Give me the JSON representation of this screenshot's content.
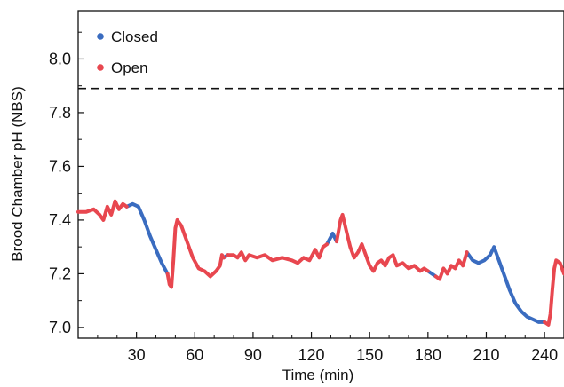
{
  "chart_data": {
    "type": "scatter",
    "title": "",
    "xlabel": "Time (min)",
    "ylabel": "Brood Chamber pH (NBS)",
    "xlim": [
      0,
      250
    ],
    "ylim": [
      6.96,
      8.18
    ],
    "x_ticks": [
      30,
      60,
      90,
      120,
      150,
      180,
      210,
      240
    ],
    "x_tick_labels": [
      "30",
      "60",
      "90",
      "120",
      "150",
      "180",
      "210",
      "240"
    ],
    "y_ticks": [
      7.0,
      7.2,
      7.4,
      7.6,
      7.8,
      8.0
    ],
    "y_tick_labels": [
      "7.0",
      "7.2",
      "7.4",
      "7.6",
      "7.8",
      "8.0"
    ],
    "reference_line": {
      "y": 7.89,
      "style": "dashed"
    },
    "legend_position": "top-left",
    "series": [
      {
        "name": "Closed",
        "color": "#3a6cc0",
        "segments": [
          [
            [
              25,
              7.45
            ],
            [
              28,
              7.46
            ],
            [
              31,
              7.45
            ],
            [
              34,
              7.4
            ],
            [
              37,
              7.34
            ],
            [
              40,
              7.29
            ],
            [
              43,
              7.24
            ],
            [
              46,
              7.2
            ]
          ],
          [
            [
              75,
              7.26
            ],
            [
              77,
              7.27
            ]
          ],
          [
            [
              128,
              7.31
            ],
            [
              131,
              7.35
            ],
            [
              133,
              7.32
            ]
          ],
          [
            [
              180,
              7.21
            ],
            [
              182,
              7.2
            ],
            [
              184,
              7.19
            ]
          ],
          [
            [
              200,
              7.28
            ],
            [
              203,
              7.25
            ],
            [
              206,
              7.24
            ],
            [
              209,
              7.25
            ],
            [
              212,
              7.27
            ],
            [
              214,
              7.3
            ],
            [
              216,
              7.26
            ],
            [
              219,
              7.2
            ],
            [
              222,
              7.14
            ],
            [
              225,
              7.09
            ],
            [
              228,
              7.06
            ],
            [
              231,
              7.04
            ],
            [
              234,
              7.03
            ],
            [
              237,
              7.02
            ],
            [
              240,
              7.02
            ]
          ]
        ]
      },
      {
        "name": "Open",
        "color": "#e8474f",
        "segments": [
          [
            [
              0,
              7.43
            ],
            [
              4,
              7.43
            ],
            [
              8,
              7.44
            ],
            [
              11,
              7.42
            ],
            [
              13,
              7.4
            ],
            [
              15,
              7.45
            ],
            [
              17,
              7.42
            ],
            [
              19,
              7.47
            ],
            [
              21,
              7.44
            ],
            [
              23,
              7.46
            ],
            [
              25,
              7.45
            ]
          ],
          [
            [
              46,
              7.2
            ],
            [
              47,
              7.16
            ],
            [
              48,
              7.15
            ],
            [
              49,
              7.25
            ],
            [
              50,
              7.37
            ],
            [
              51,
              7.4
            ],
            [
              53,
              7.38
            ],
            [
              56,
              7.32
            ],
            [
              59,
              7.26
            ],
            [
              62,
              7.22
            ],
            [
              65,
              7.21
            ],
            [
              68,
              7.19
            ],
            [
              71,
              7.21
            ],
            [
              73,
              7.23
            ],
            [
              74,
              7.27
            ],
            [
              75,
              7.26
            ]
          ],
          [
            [
              77,
              7.27
            ],
            [
              80,
              7.27
            ],
            [
              82,
              7.26
            ],
            [
              84,
              7.28
            ],
            [
              86,
              7.25
            ],
            [
              88,
              7.27
            ],
            [
              92,
              7.26
            ],
            [
              96,
              7.27
            ],
            [
              100,
              7.25
            ],
            [
              105,
              7.26
            ],
            [
              110,
              7.25
            ],
            [
              113,
              7.24
            ],
            [
              116,
              7.26
            ],
            [
              119,
              7.25
            ],
            [
              122,
              7.29
            ],
            [
              124,
              7.26
            ],
            [
              126,
              7.3
            ],
            [
              128,
              7.31
            ]
          ],
          [
            [
              133,
              7.32
            ],
            [
              135,
              7.4
            ],
            [
              136,
              7.42
            ],
            [
              138,
              7.36
            ],
            [
              140,
              7.3
            ],
            [
              142,
              7.26
            ],
            [
              144,
              7.28
            ],
            [
              146,
              7.31
            ],
            [
              148,
              7.27
            ],
            [
              150,
              7.23
            ],
            [
              152,
              7.21
            ],
            [
              154,
              7.24
            ],
            [
              156,
              7.25
            ],
            [
              158,
              7.23
            ],
            [
              160,
              7.26
            ],
            [
              162,
              7.27
            ],
            [
              164,
              7.23
            ],
            [
              167,
              7.24
            ],
            [
              170,
              7.22
            ],
            [
              173,
              7.23
            ],
            [
              176,
              7.21
            ],
            [
              178,
              7.22
            ],
            [
              180,
              7.21
            ]
          ],
          [
            [
              184,
              7.19
            ],
            [
              186,
              7.18
            ],
            [
              188,
              7.22
            ],
            [
              190,
              7.2
            ],
            [
              192,
              7.23
            ],
            [
              194,
              7.22
            ],
            [
              196,
              7.25
            ],
            [
              198,
              7.23
            ],
            [
              200,
              7.28
            ]
          ],
          [
            [
              240,
              7.02
            ],
            [
              242,
              7.01
            ],
            [
              243,
              7.05
            ],
            [
              244,
              7.14
            ],
            [
              245,
              7.22
            ],
            [
              246,
              7.25
            ],
            [
              248,
              7.24
            ],
            [
              250,
              7.2
            ]
          ]
        ]
      }
    ]
  }
}
